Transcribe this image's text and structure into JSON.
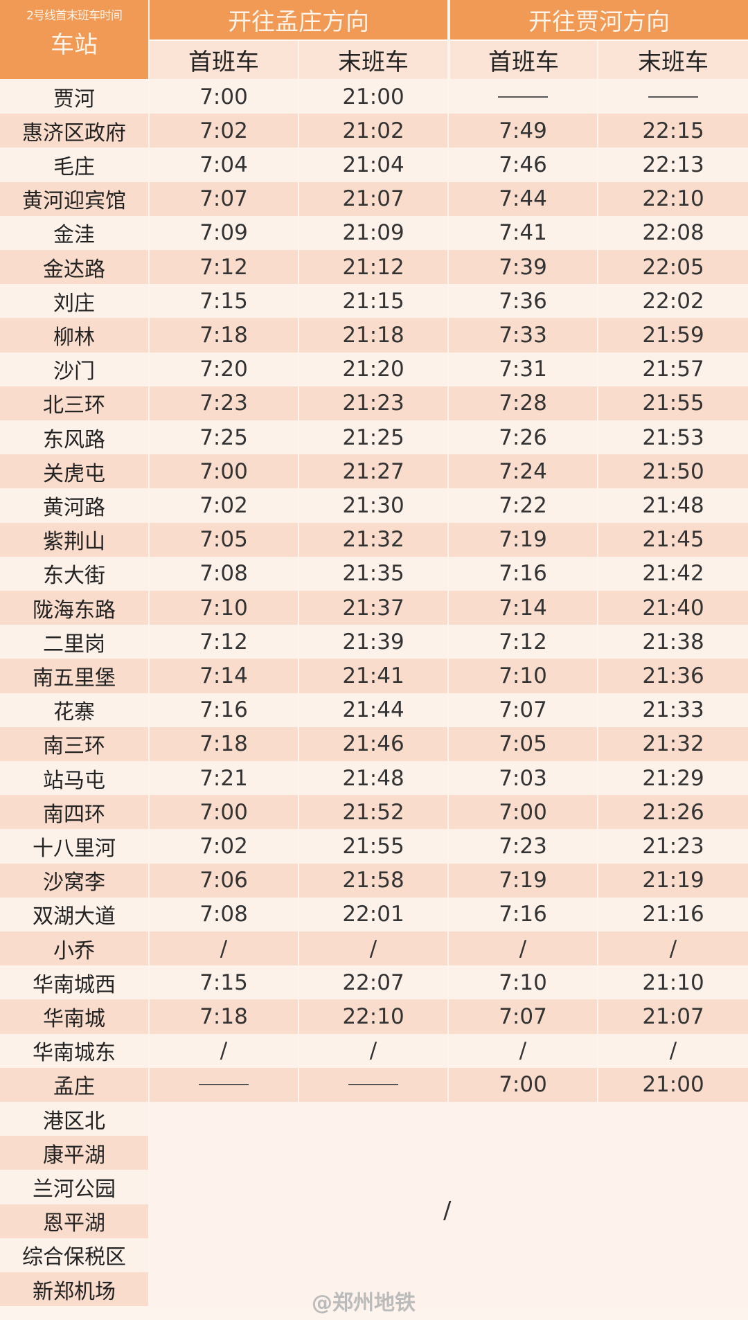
{
  "header": {
    "caption": "2号线首末班车时间",
    "station_label": "车站",
    "directions": [
      "开往孟庄方向",
      "开往贾河方向"
    ],
    "subcols": [
      "首班车",
      "末班车",
      "首班车",
      "末班车"
    ]
  },
  "rows": [
    {
      "station": "贾河",
      "t": [
        "7:00",
        "21:00",
        "——",
        "——"
      ]
    },
    {
      "station": "惠济区政府",
      "t": [
        "7:02",
        "21:02",
        "7:49",
        "22:15"
      ]
    },
    {
      "station": "毛庄",
      "t": [
        "7:04",
        "21:04",
        "7:46",
        "22:13"
      ]
    },
    {
      "station": "黄河迎宾馆",
      "t": [
        "7:07",
        "21:07",
        "7:44",
        "22:10"
      ]
    },
    {
      "station": "金洼",
      "t": [
        "7:09",
        "21:09",
        "7:41",
        "22:08"
      ]
    },
    {
      "station": "金达路",
      "t": [
        "7:12",
        "21:12",
        "7:39",
        "22:05"
      ]
    },
    {
      "station": "刘庄",
      "t": [
        "7:15",
        "21:15",
        "7:36",
        "22:02"
      ]
    },
    {
      "station": "柳林",
      "t": [
        "7:18",
        "21:18",
        "7:33",
        "21:59"
      ]
    },
    {
      "station": "沙门",
      "t": [
        "7:20",
        "21:20",
        "7:31",
        "21:57"
      ]
    },
    {
      "station": "北三环",
      "t": [
        "7:23",
        "21:23",
        "7:28",
        "21:55"
      ]
    },
    {
      "station": "东风路",
      "t": [
        "7:25",
        "21:25",
        "7:26",
        "21:53"
      ]
    },
    {
      "station": "关虎屯",
      "t": [
        "7:00",
        "21:27",
        "7:24",
        "21:50"
      ]
    },
    {
      "station": "黄河路",
      "t": [
        "7:02",
        "21:30",
        "7:22",
        "21:48"
      ]
    },
    {
      "station": "紫荆山",
      "t": [
        "7:05",
        "21:32",
        "7:19",
        "21:45"
      ]
    },
    {
      "station": "东大街",
      "t": [
        "7:08",
        "21:35",
        "7:16",
        "21:42"
      ]
    },
    {
      "station": "陇海东路",
      "t": [
        "7:10",
        "21:37",
        "7:14",
        "21:40"
      ]
    },
    {
      "station": "二里岗",
      "t": [
        "7:12",
        "21:39",
        "7:12",
        "21:38"
      ]
    },
    {
      "station": "南五里堡",
      "t": [
        "7:14",
        "21:41",
        "7:10",
        "21:36"
      ]
    },
    {
      "station": "花寨",
      "t": [
        "7:16",
        "21:44",
        "7:07",
        "21:33"
      ]
    },
    {
      "station": "南三环",
      "t": [
        "7:18",
        "21:46",
        "7:05",
        "21:32"
      ]
    },
    {
      "station": "站马屯",
      "t": [
        "7:21",
        "21:48",
        "7:03",
        "21:29"
      ]
    },
    {
      "station": "南四环",
      "t": [
        "7:00",
        "21:52",
        "7:00",
        "21:26"
      ]
    },
    {
      "station": "十八里河",
      "t": [
        "7:02",
        "21:55",
        "7:23",
        "21:23"
      ]
    },
    {
      "station": "沙窝李",
      "t": [
        "7:06",
        "21:58",
        "7:19",
        "21:19"
      ]
    },
    {
      "station": "双湖大道",
      "t": [
        "7:08",
        "22:01",
        "7:16",
        "21:16"
      ]
    },
    {
      "station": "小乔",
      "t": [
        "/",
        "/",
        "/",
        "/"
      ]
    },
    {
      "station": "华南城西",
      "t": [
        "7:15",
        "22:07",
        "7:10",
        "21:10"
      ]
    },
    {
      "station": "华南城",
      "t": [
        "7:18",
        "22:10",
        "7:07",
        "21:07"
      ]
    },
    {
      "station": "华南城东",
      "t": [
        "/",
        "/",
        "/",
        "/"
      ]
    },
    {
      "station": "孟庄",
      "t": [
        "——",
        "——",
        "7:00",
        "21:00"
      ]
    }
  ],
  "future_stations": [
    "港区北",
    "康平湖",
    "兰河公园",
    "恩平湖",
    "综合保税区",
    "新郑机场"
  ],
  "future_note": "/",
  "watermark": "@郑州地铁",
  "colors": {
    "header": "#f09a55",
    "subheader": "#fbe4d6",
    "row_dark": "#f9dccb",
    "row_light": "#fdf2ea"
  }
}
